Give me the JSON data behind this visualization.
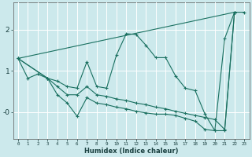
{
  "xlabel": "Humidex (Indice chaleur)",
  "background_color": "#cce9ec",
  "grid_color_main": "#ffffff",
  "grid_color_red": "#cc8888",
  "line_color": "#1a7060",
  "ylim": [
    -0.65,
    2.65
  ],
  "yticks": [
    2,
    1,
    -0.0
  ],
  "ytick_labels": [
    "2",
    "1",
    "-0"
  ],
  "xlim": [
    -0.5,
    23.5
  ],
  "line1_x": [
    0,
    1,
    2,
    3,
    4,
    5,
    6,
    7,
    8,
    9,
    10,
    11,
    12,
    13,
    14,
    15,
    16,
    17,
    18,
    19,
    20,
    21,
    22,
    23
  ],
  "line1_y": [
    1.3,
    0.82,
    0.92,
    0.82,
    0.75,
    0.62,
    0.58,
    1.22,
    0.62,
    0.58,
    1.38,
    1.9,
    1.88,
    1.62,
    1.32,
    1.32,
    0.88,
    0.58,
    0.52,
    -0.05,
    -0.45,
    1.78,
    2.42,
    2.42
  ],
  "line2_x": [
    0,
    22
  ],
  "line2_y": [
    1.3,
    2.42
  ],
  "line3_x": [
    0,
    3,
    4,
    5,
    6,
    7,
    8,
    9,
    10,
    11,
    12,
    13,
    14,
    15,
    16,
    17,
    18,
    19,
    20,
    21,
    22
  ],
  "line3_y": [
    1.3,
    0.82,
    0.62,
    0.42,
    0.42,
    0.62,
    0.42,
    0.38,
    0.32,
    0.28,
    0.22,
    0.18,
    0.12,
    0.08,
    0.02,
    -0.03,
    -0.08,
    -0.13,
    -0.18,
    -0.42,
    2.42
  ],
  "line4_x": [
    0,
    3,
    4,
    5,
    6,
    7,
    8,
    9,
    10,
    11,
    12,
    13,
    14,
    15,
    16,
    17,
    18,
    19,
    20,
    21,
    22
  ],
  "line4_y": [
    1.3,
    0.82,
    0.42,
    0.22,
    -0.1,
    0.35,
    0.22,
    0.18,
    0.12,
    0.08,
    0.02,
    -0.02,
    -0.05,
    -0.05,
    -0.08,
    -0.15,
    -0.22,
    -0.42,
    -0.45,
    -0.45,
    2.42
  ],
  "red_vlines": [
    5,
    10,
    15,
    20
  ]
}
